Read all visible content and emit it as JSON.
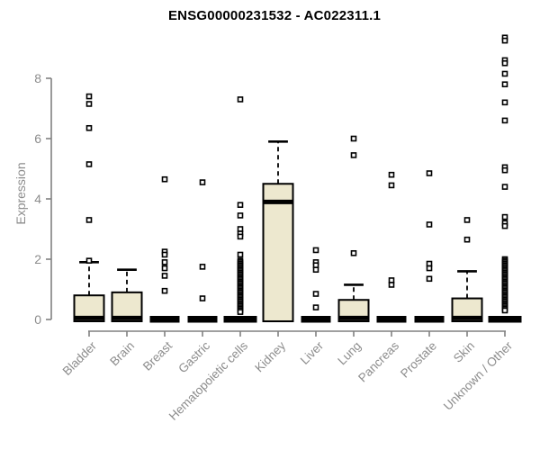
{
  "chart_data": {
    "type": "boxplot",
    "title": "ENSG00000231532 - AC022311.1",
    "ylabel": "Expression",
    "xlabel": "",
    "yticks": [
      0,
      2,
      4,
      6,
      8
    ],
    "ylim": [
      0,
      9.6
    ],
    "grid": false,
    "legend": "none",
    "categories": [
      "Bladder",
      "Brain",
      "Breast",
      "Gastric",
      "Hematopoietic cells",
      "Kidney",
      "Liver",
      "Lung",
      "Pancreas",
      "Prostate",
      "Skin",
      "Unknown / Other"
    ],
    "boxes": [
      {
        "category": "Bladder",
        "collapsed": false,
        "wide": false,
        "q1": 0,
        "median": 0.05,
        "q3": 0.8,
        "whisker_high": 1.9,
        "outliers": [
          7.4,
          7.15,
          6.35,
          5.15,
          3.3,
          1.95
        ]
      },
      {
        "category": "Brain",
        "collapsed": false,
        "wide": false,
        "q1": 0,
        "median": 0.05,
        "q3": 0.9,
        "whisker_high": 1.65,
        "outliers": []
      },
      {
        "category": "Breast",
        "collapsed": true,
        "wide": false,
        "q1": 0,
        "median": 0,
        "q3": 0,
        "whisker_high": 0,
        "outliers": [
          4.65,
          2.25,
          2.15,
          1.9,
          1.7,
          1.45,
          0.95
        ]
      },
      {
        "category": "Gastric",
        "collapsed": true,
        "wide": false,
        "q1": 0,
        "median": 0,
        "q3": 0,
        "whisker_high": 0,
        "outliers": [
          4.55,
          1.75,
          0.7
        ]
      },
      {
        "category": "Hematopoietic cells",
        "collapsed": true,
        "wide": true,
        "q1": 0,
        "median": 0,
        "q3": 0,
        "whisker_high": 0,
        "outliers": [
          7.3,
          3.8,
          3.45,
          3.0,
          2.85,
          2.75,
          2.15,
          1.95,
          1.9,
          1.85,
          1.8,
          1.75,
          1.7,
          1.65,
          1.6,
          1.55,
          1.5,
          1.45,
          1.4,
          1.35,
          1.3,
          1.25,
          1.2,
          1.15,
          1.1,
          1.05,
          1.0,
          0.95,
          0.9,
          0.85,
          0.8,
          0.75,
          0.7,
          0.65,
          0.6,
          0.55,
          0.5,
          0.45,
          0.4,
          0.35,
          0.3,
          0.25
        ]
      },
      {
        "category": "Kidney",
        "collapsed": false,
        "wide": false,
        "q1": 0,
        "median": 3.9,
        "q3": 4.5,
        "whisker_high": 5.9,
        "outliers": []
      },
      {
        "category": "Liver",
        "collapsed": true,
        "wide": false,
        "q1": 0,
        "median": 0,
        "q3": 0,
        "whisker_high": 0,
        "outliers": [
          2.3,
          1.9,
          1.8,
          1.65,
          0.85,
          0.4
        ]
      },
      {
        "category": "Lung",
        "collapsed": false,
        "wide": false,
        "q1": 0,
        "median": 0.05,
        "q3": 0.65,
        "whisker_high": 1.15,
        "outliers": [
          6.0,
          5.45,
          2.2
        ]
      },
      {
        "category": "Pancreas",
        "collapsed": true,
        "wide": false,
        "q1": 0,
        "median": 0,
        "q3": 0,
        "whisker_high": 0,
        "outliers": [
          4.8,
          4.45,
          1.3,
          1.15
        ]
      },
      {
        "category": "Prostate",
        "collapsed": true,
        "wide": false,
        "q1": 0,
        "median": 0,
        "q3": 0,
        "whisker_high": 0,
        "outliers": [
          4.85,
          3.15,
          1.85,
          1.7,
          1.35
        ]
      },
      {
        "category": "Skin",
        "collapsed": false,
        "wide": false,
        "q1": 0,
        "median": 0.05,
        "q3": 0.7,
        "whisker_high": 1.6,
        "outliers": [
          3.3,
          2.65
        ]
      },
      {
        "category": "Unknown / Other",
        "collapsed": true,
        "wide": true,
        "q1": 0,
        "median": 0,
        "q3": 0,
        "whisker_high": 0,
        "outliers": [
          9.35,
          9.25,
          8.6,
          8.5,
          8.15,
          7.8,
          7.2,
          6.6,
          5.05,
          4.95,
          4.4,
          3.4,
          3.2,
          3.1,
          2.0,
          1.95,
          1.9,
          1.85,
          1.8,
          1.75,
          1.7,
          1.65,
          1.6,
          1.55,
          1.5,
          1.45,
          1.4,
          1.35,
          1.3,
          1.25,
          1.2,
          1.15,
          1.1,
          1.05,
          1.0,
          0.95,
          0.9,
          0.85,
          0.8,
          0.75,
          0.7,
          0.65,
          0.6,
          0.55,
          0.5,
          0.45,
          0.4,
          0.35,
          0.3
        ]
      }
    ],
    "colors": {
      "box_fill": "#ede8cf",
      "box_border": "#000000",
      "median": "#000000",
      "outlier_fill": "#ffffff",
      "axis_line": "#808080",
      "tick_text": "#8c8c8c",
      "title_text": "#000000"
    }
  }
}
